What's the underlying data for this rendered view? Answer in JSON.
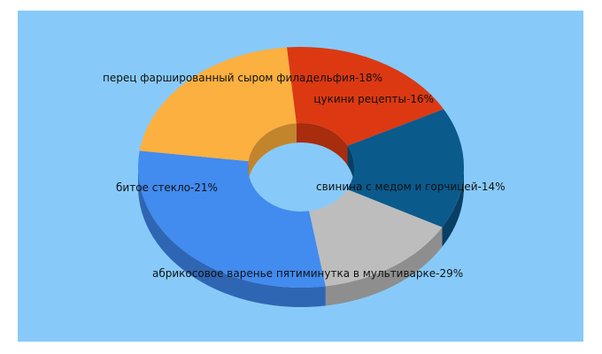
{
  "chart_data": {
    "type": "pie",
    "variant": "donut-3d",
    "title": "",
    "background": "#87CAF9",
    "slices": [
      {
        "label": "перец фаршированный сыром филадельфия",
        "value": 18,
        "display": "перец фаршированный сыром филадельфия-18%",
        "color": "#DC3912",
        "side_color": "#A82C0E"
      },
      {
        "label": "цукини рецепты",
        "value": 16,
        "display": "цукини рецепты-16%",
        "color": "#0B5A8C",
        "side_color": "#083F63"
      },
      {
        "label": "свинина с медом и горчицей",
        "value": 14,
        "display": "свинина с медом и горчицей-14%",
        "color": "#BDBDBD",
        "side_color": "#8E8E8E"
      },
      {
        "label": "абрикосовое варенье пятиминутка в мультиварке",
        "value": 29,
        "display": "абрикосовое варенье пятиминутка в мультиварке-29%",
        "color": "#428BEF",
        "side_color": "#2F66B3"
      },
      {
        "label": "битое стекло",
        "value": 21,
        "display": "битое стекло-21%",
        "color": "#FBB040",
        "side_color": "#C3852B"
      }
    ]
  }
}
